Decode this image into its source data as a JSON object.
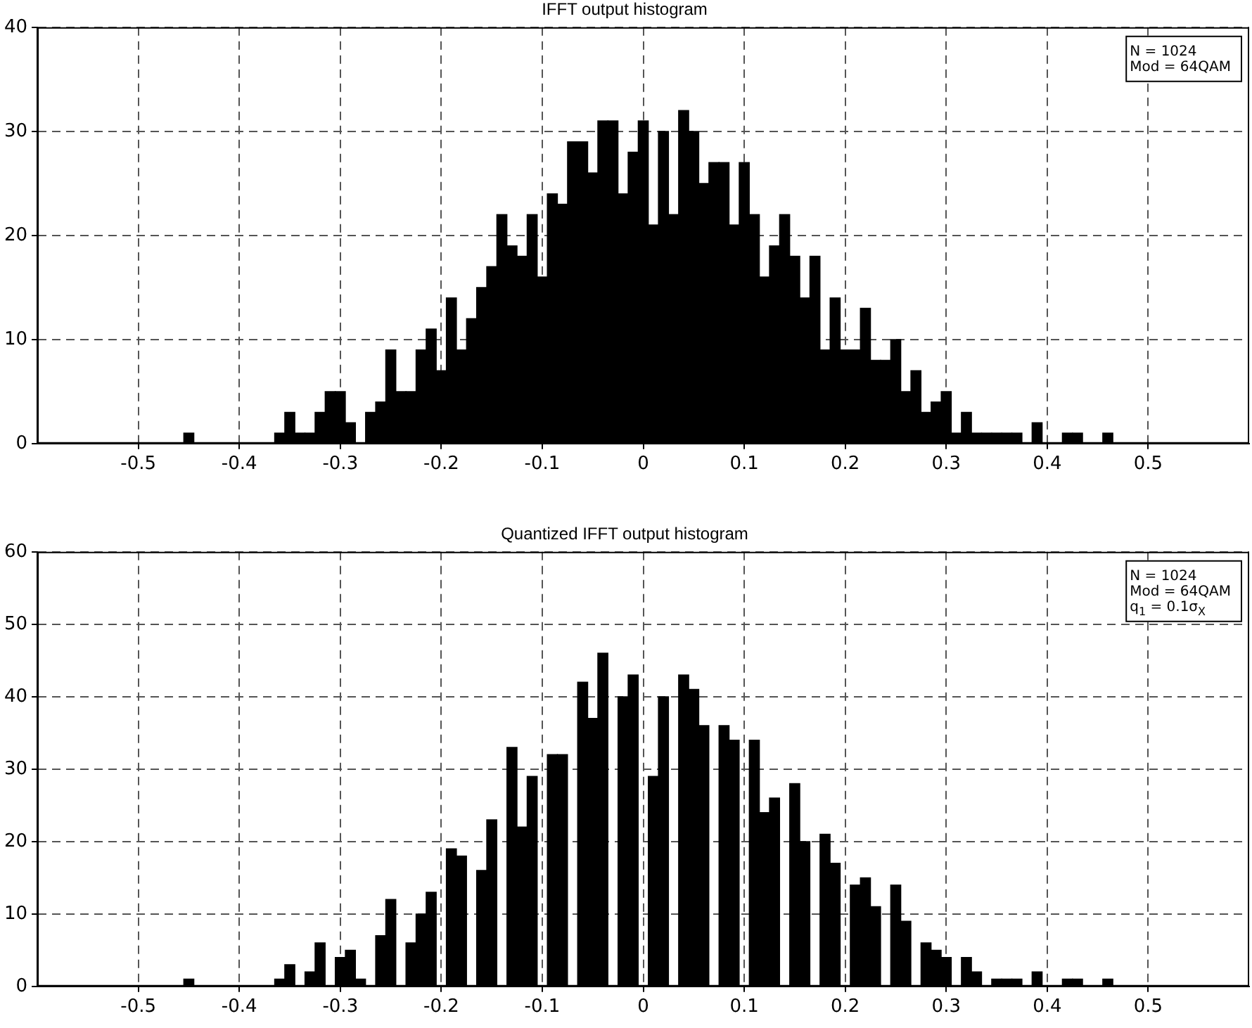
{
  "chart_data": [
    {
      "type": "histogram",
      "title": "IFFT output histogram",
      "color": "#000000",
      "bins": [
        -0.455,
        -0.445,
        -0.435,
        -0.425,
        -0.415,
        -0.405,
        -0.395,
        -0.385,
        -0.375,
        -0.365,
        -0.355,
        -0.345,
        -0.335,
        -0.325,
        -0.315,
        -0.305,
        -0.295,
        -0.285,
        -0.275,
        -0.265,
        -0.255,
        -0.245,
        -0.235,
        -0.225,
        -0.215,
        -0.205,
        -0.195,
        -0.185,
        -0.175,
        -0.165,
        -0.155,
        -0.145,
        -0.135,
        -0.125,
        -0.115,
        -0.105,
        -0.095,
        -0.085,
        -0.075,
        -0.065,
        -0.055,
        -0.045,
        -0.035,
        -0.025,
        -0.015,
        -0.005,
        0.005,
        0.015,
        0.025,
        0.035,
        0.045,
        0.055,
        0.065,
        0.075,
        0.085,
        0.095,
        0.105,
        0.115,
        0.125,
        0.135,
        0.145,
        0.155,
        0.165,
        0.175,
        0.185,
        0.195,
        0.205,
        0.215,
        0.225,
        0.235,
        0.245,
        0.255,
        0.265,
        0.275,
        0.285,
        0.295,
        0.305,
        0.315,
        0.325,
        0.335,
        0.345,
        0.355,
        0.365,
        0.375,
        0.385,
        0.395,
        0.405,
        0.415,
        0.425,
        0.435,
        0.445,
        0.455,
        0.465
      ],
      "values": [
        1,
        0,
        0,
        0,
        0,
        0,
        0,
        0,
        0,
        1,
        3,
        1,
        1,
        3,
        5,
        5,
        2,
        0,
        3,
        4,
        9,
        5,
        5,
        9,
        11,
        7,
        14,
        9,
        12,
        15,
        17,
        22,
        19,
        18,
        22,
        16,
        24,
        23,
        29,
        29,
        26,
        31,
        31,
        24,
        28,
        31,
        21,
        30,
        22,
        32,
        30,
        25,
        27,
        27,
        21,
        27,
        22,
        16,
        19,
        22,
        18,
        14,
        18,
        9,
        14,
        9,
        9,
        13,
        8,
        8,
        10,
        5,
        7,
        3,
        4,
        5,
        1,
        3,
        1,
        1,
        1,
        1,
        1,
        0,
        2,
        0,
        0,
        1,
        1,
        0,
        0,
        1
      ],
      "xlim": [
        -0.6,
        0.6
      ],
      "xticks": [
        -0.5,
        -0.4,
        -0.3,
        -0.2,
        -0.1,
        0,
        0.1,
        0.2,
        0.3,
        0.4,
        0.5
      ],
      "ylim": [
        0,
        40
      ],
      "yticks": [
        0,
        10,
        20,
        30,
        40
      ],
      "grid": true,
      "annotations": [
        "N = 1024",
        "Mod = 64QAM"
      ]
    },
    {
      "type": "histogram",
      "title": "Quantized IFFT output histogram",
      "color": "#000000",
      "bins": [
        -0.455,
        -0.445,
        -0.435,
        -0.425,
        -0.415,
        -0.405,
        -0.395,
        -0.385,
        -0.375,
        -0.365,
        -0.355,
        -0.345,
        -0.335,
        -0.325,
        -0.315,
        -0.305,
        -0.295,
        -0.285,
        -0.275,
        -0.265,
        -0.255,
        -0.245,
        -0.235,
        -0.225,
        -0.215,
        -0.205,
        -0.195,
        -0.185,
        -0.175,
        -0.165,
        -0.155,
        -0.145,
        -0.135,
        -0.125,
        -0.115,
        -0.105,
        -0.095,
        -0.085,
        -0.075,
        -0.065,
        -0.055,
        -0.045,
        -0.035,
        -0.025,
        -0.015,
        -0.005,
        0.005,
        0.015,
        0.025,
        0.035,
        0.045,
        0.055,
        0.065,
        0.075,
        0.085,
        0.095,
        0.105,
        0.115,
        0.125,
        0.135,
        0.145,
        0.155,
        0.165,
        0.175,
        0.185,
        0.195,
        0.205,
        0.215,
        0.225,
        0.235,
        0.245,
        0.255,
        0.265,
        0.275,
        0.285,
        0.295,
        0.305,
        0.315,
        0.325,
        0.335,
        0.345,
        0.355,
        0.365,
        0.375,
        0.385,
        0.395,
        0.405,
        0.415,
        0.425,
        0.435,
        0.445,
        0.455,
        0.465
      ],
      "values": [
        1,
        0,
        0,
        0,
        0,
        0,
        0,
        0,
        0,
        1,
        3,
        0,
        2,
        6,
        0,
        4,
        5,
        1,
        0,
        7,
        12,
        0,
        6,
        10,
        13,
        0,
        19,
        18,
        0,
        16,
        23,
        0,
        33,
        22,
        29,
        0,
        32,
        32,
        0,
        42,
        37,
        46,
        0,
        40,
        43,
        0,
        29,
        40,
        0,
        43,
        41,
        36,
        0,
        36,
        34,
        0,
        34,
        24,
        26,
        0,
        28,
        20,
        0,
        21,
        17,
        0,
        14,
        15,
        11,
        0,
        14,
        9,
        0,
        6,
        5,
        4,
        0,
        4,
        2,
        0,
        1,
        1,
        1,
        0,
        2,
        0,
        0,
        1,
        1,
        0,
        0,
        1
      ],
      "xlim": [
        -0.6,
        0.6
      ],
      "xticks": [
        -0.5,
        -0.4,
        -0.3,
        -0.2,
        -0.1,
        0,
        0.1,
        0.2,
        0.3,
        0.4,
        0.5
      ],
      "ylim": [
        0,
        60
      ],
      "yticks": [
        0,
        10,
        20,
        30,
        40,
        50,
        60
      ],
      "grid": true,
      "annotations": [
        "N = 1024",
        "Mod = 64QAM",
        "q$_{1}$ = 0.1σ$_{X}$"
      ]
    }
  ]
}
